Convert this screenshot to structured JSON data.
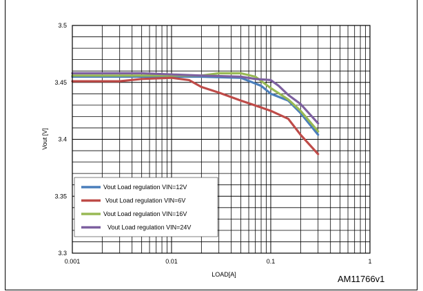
{
  "chart_data": {
    "type": "line",
    "x_scale": "log",
    "xlim": [
      0.001,
      1
    ],
    "ylim": [
      3.3,
      3.5
    ],
    "xlabel": "LOAD[A]",
    "ylabel": "Vout [V]",
    "x_ticks": [
      "0.001",
      "0.01",
      "0.1",
      "1"
    ],
    "y_ticks": [
      "3.3",
      "3.35",
      "3.4",
      "3.45",
      "3.5"
    ],
    "grid": true,
    "legend_placement": "lower-left",
    "series": [
      {
        "name": "Vout Load regulation VIN=12V",
        "color": "#4a7ebb",
        "x": [
          0.001,
          0.005,
          0.01,
          0.02,
          0.05,
          0.08,
          0.1,
          0.15,
          0.2,
          0.3
        ],
        "y": [
          3.455,
          3.455,
          3.455,
          3.455,
          3.454,
          3.447,
          3.44,
          3.434,
          3.423,
          3.404
        ]
      },
      {
        "name": "Vout Load regulation VIN=6V",
        "color": "#be4b48",
        "x": [
          0.001,
          0.003,
          0.005,
          0.01,
          0.015,
          0.02,
          0.03,
          0.05,
          0.08,
          0.1,
          0.15,
          0.2,
          0.3
        ],
        "y": [
          3.451,
          3.451,
          3.453,
          3.454,
          3.452,
          3.446,
          3.441,
          3.434,
          3.428,
          3.425,
          3.418,
          3.404,
          3.387
        ]
      },
      {
        "name": "Vout Load regulation VIN=16V",
        "color": "#98b954",
        "x": [
          0.001,
          0.005,
          0.01,
          0.02,
          0.03,
          0.05,
          0.07,
          0.1,
          0.15,
          0.2,
          0.3
        ],
        "y": [
          3.456,
          3.456,
          3.456,
          3.456,
          3.458,
          3.458,
          3.455,
          3.445,
          3.435,
          3.425,
          3.407
        ]
      },
      {
        "name": "Vout Load regulation VIN=24V",
        "color": "#7d60a0",
        "x": [
          0.001,
          0.005,
          0.01,
          0.02,
          0.05,
          0.07,
          0.1,
          0.12,
          0.15,
          0.2,
          0.3
        ],
        "y": [
          3.458,
          3.458,
          3.457,
          3.456,
          3.455,
          3.453,
          3.452,
          3.447,
          3.439,
          3.431,
          3.414
        ]
      }
    ]
  },
  "figure_id": "AM11766v1"
}
